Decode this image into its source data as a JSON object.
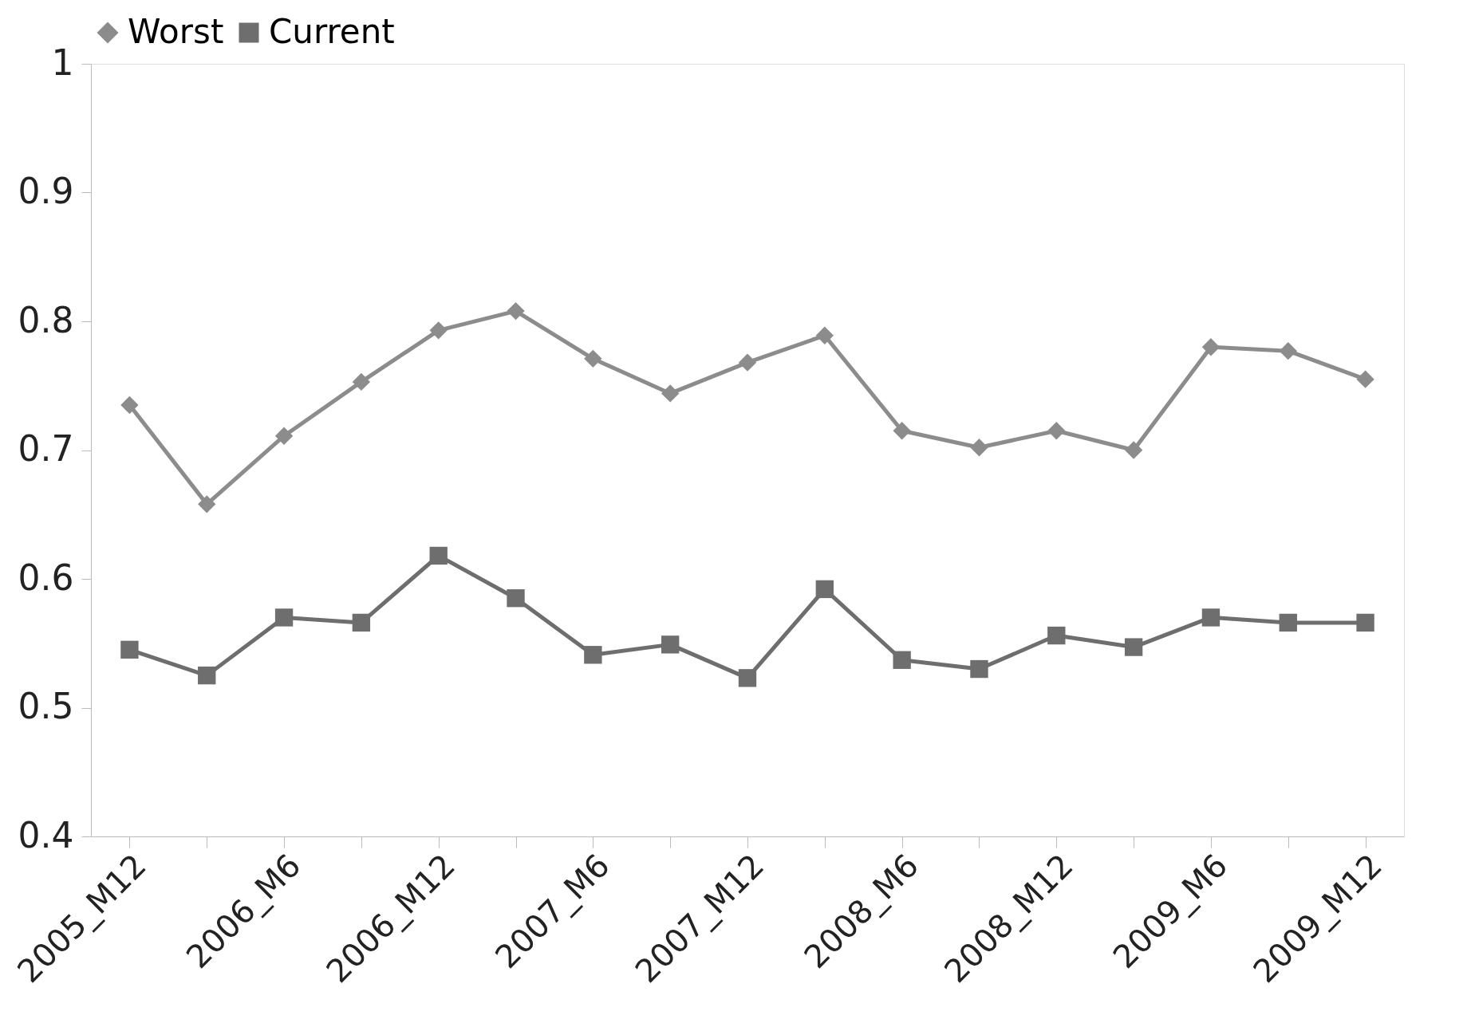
{
  "chart_data": {
    "type": "line",
    "categories": [
      "2005_M12",
      null,
      "2006_M6",
      null,
      "2006_M12",
      null,
      "2007_M6",
      null,
      "2007_M12",
      null,
      "2008_M6",
      null,
      "2008_M12",
      null,
      "2009_M6",
      null,
      "2009_M12"
    ],
    "series": [
      {
        "name": "Worst",
        "color": "#8c8c8c",
        "marker": "diamond",
        "values": [
          0.735,
          0.658,
          0.711,
          0.753,
          0.793,
          0.808,
          0.771,
          0.744,
          0.768,
          0.789,
          0.715,
          0.702,
          0.715,
          0.7,
          0.78,
          0.777,
          0.755
        ]
      },
      {
        "name": "Current",
        "color": "#6e6e6e",
        "marker": "square",
        "values": [
          0.545,
          0.525,
          0.57,
          0.566,
          0.618,
          0.585,
          0.541,
          0.549,
          0.523,
          0.592,
          0.537,
          0.53,
          0.556,
          0.547,
          0.57,
          0.566,
          0.566
        ]
      }
    ],
    "ylim": [
      0.4,
      1
    ],
    "yticks": [
      0.4,
      0.5,
      0.6,
      0.7,
      0.8,
      0.9,
      1
    ],
    "grid": false,
    "legend": "top",
    "line_style": "solid"
  }
}
